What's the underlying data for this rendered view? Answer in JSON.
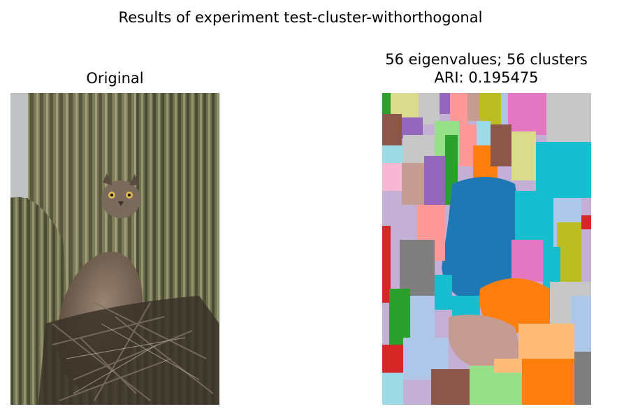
{
  "figure": {
    "suptitle": "Results of experiment test-cluster-withorthogonal",
    "left_panel": {
      "title": "Original",
      "content": "owl-on-saguaro-photo"
    },
    "right_panel": {
      "title_line1": "56 eigenvalues; 56 clusters",
      "title_line2": "ARI: 0.195475",
      "content": "cluster-segmentation-map"
    }
  },
  "palette": {
    "blue": "#1f77b4",
    "orange": "#ff7f0e",
    "green": "#2ca02c",
    "red": "#d62728",
    "purple": "#9467bd",
    "brown": "#8c564b",
    "pink": "#e377c2",
    "gray": "#7f7f7f",
    "olive": "#bcbd22",
    "cyan": "#17becf",
    "light_blue": "#aec7e8",
    "light_orange": "#ffbb78",
    "light_green": "#98df8a",
    "light_red": "#ff9896",
    "light_purple": "#c5b0d5",
    "light_brown": "#c49c94",
    "light_pink": "#f7b6d2",
    "light_gray": "#c7c7c7",
    "light_olive": "#dbdb8d",
    "light_cyan": "#9edae5"
  }
}
